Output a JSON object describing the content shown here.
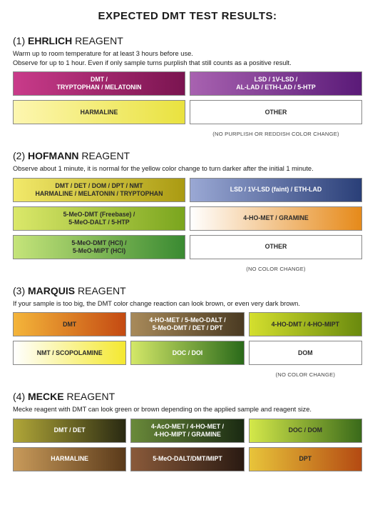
{
  "title": "EXPECTED DMT TEST RESULTS:",
  "sections": [
    {
      "num": "(1)",
      "name": "EHRLICH",
      "word": "REAGENT",
      "instr": "Warm up to room temperature for at least 3 hours before use.\nObserve for up to 1 hour. Even if only sample turns purplish that still counts as a positive result.",
      "cols": 2,
      "rows": [
        [
          {
            "label": "DMT /\nTRYPTOPHAN / MELATONIN",
            "bg": "linear-gradient(to right,#c93b8a,#7a1450)",
            "fg": "#ffffff"
          },
          {
            "label": "LSD / 1V-LSD /\nAL-LAD / ETH-LAD / 5-HTP",
            "bg": "linear-gradient(to right,#a862b0,#5a1a78)",
            "fg": "#ffffff"
          }
        ],
        [
          {
            "label": "HARMALINE",
            "bg": "linear-gradient(to right,#fdf6b0,#e9e23f)",
            "fg": "#2a2a2a"
          },
          {
            "label": "OTHER",
            "bg": "#ffffff",
            "fg": "#2a2a2a",
            "note": "(NO PURPLISH OR REDDISH COLOR CHANGE)"
          }
        ]
      ]
    },
    {
      "num": "(2)",
      "name": "HOFMANN",
      "word": "REAGENT",
      "instr": "Observe about 1 minute, it is normal for the yellow color change to turn darker after the initial 1 minute.",
      "cols": 2,
      "rows": [
        [
          {
            "label": "DMT / DET / DOM / DPT / NMT\nHARMALINE / MELATONIN / TRYPTOPHAN",
            "bg": "linear-gradient(to right,#f2e96a,#aa9a12)",
            "fg": "#2a2a2a"
          },
          {
            "label": "LSD / 1V-LSD (faint) / ETH-LAD",
            "bg": "linear-gradient(to right,#9aa8d4,#2a3f78)",
            "fg": "#ffffff"
          }
        ],
        [
          {
            "label": "5-MeO-DMT (Freebase) /\n5-MeO-DALT / 5-HTP",
            "bg": "linear-gradient(to right,#dbe86a,#7aa51e)",
            "fg": "#2a2a2a"
          },
          {
            "label": "4-HO-MET / GRAMINE",
            "bg": "linear-gradient(to right,#ffffff,#e68a1a)",
            "fg": "#2a2a2a"
          }
        ],
        [
          {
            "label": "5-MeO-DMT (HCl) /\n5-MeO-MiPT (HCl)",
            "bg": "linear-gradient(to right,#c5e47a,#3a8a32)",
            "fg": "#2a2a2a"
          },
          {
            "label": "OTHER",
            "bg": "#ffffff",
            "fg": "#2a2a2a",
            "note": "(NO COLOR CHANGE)"
          }
        ]
      ]
    },
    {
      "num": "(3)",
      "name": "MARQUIS",
      "word": "REAGENT",
      "instr": "If your sample is too big, the DMT color change reaction can look brown, or even very dark brown.",
      "cols": 3,
      "rows": [
        [
          {
            "label": "DMT",
            "bg": "linear-gradient(to right,#f4b53a,#c44a12)",
            "fg": "#2a2a2a"
          },
          {
            "label": "4-HO-MET / 5-MeO-DALT /\n5-MeO-DMT / DET / DPT",
            "bg": "linear-gradient(to right,#a88a5a,#4a3a22)",
            "fg": "#ffffff"
          },
          {
            "label": "4-HO-DMT / 4-HO-MIPT",
            "bg": "linear-gradient(to right,#d4df2e,#6a8a0e)",
            "fg": "#2a2a2a"
          }
        ],
        [
          {
            "label": "NMT / SCOPOLAMINE",
            "bg": "linear-gradient(to right,#ffffff,#f4e830)",
            "fg": "#2a2a2a"
          },
          {
            "label": "DOC / DOI",
            "bg": "linear-gradient(to right,#d4e868,#2a6a1a)",
            "fg": "#ffffff"
          },
          {
            "label": "DOM",
            "bg": "#ffffff",
            "fg": "#2a2a2a",
            "note": "(NO COLOR CHANGE)"
          }
        ]
      ]
    },
    {
      "num": "(4)",
      "name": "MECKE",
      "word": "REAGENT",
      "instr": "Mecke reagent with DMT can look green or brown depending on the applied sample and reagent size.",
      "cols": 3,
      "rows": [
        [
          {
            "label": "DMT / DET",
            "bg": "linear-gradient(to right,#b0a638,#2a2a12)",
            "fg": "#ffffff"
          },
          {
            "label": "4-AcO-MET / 4-HO-MET /\n4-HO-MIPT / GRAMINE",
            "bg": "linear-gradient(to right,#6a8a3a,#1a2a12)",
            "fg": "#ffffff"
          },
          {
            "label": "DOC / DOM",
            "bg": "linear-gradient(to right,#d4e84a,#3a6a1a)",
            "fg": "#2a2a2a"
          }
        ],
        [
          {
            "label": "HARMALINE",
            "bg": "linear-gradient(to right,#c89a5a,#5a3a1a)",
            "fg": "#ffffff"
          },
          {
            "label": "5-MeO-DALT/DMT/MIPT",
            "bg": "linear-gradient(to right,#8a5a3a,#2a1a12)",
            "fg": "#ffffff"
          },
          {
            "label": "DPT",
            "bg": "linear-gradient(to right,#e8c43a,#b44a12)",
            "fg": "#2a2a2a"
          }
        ]
      ]
    }
  ]
}
